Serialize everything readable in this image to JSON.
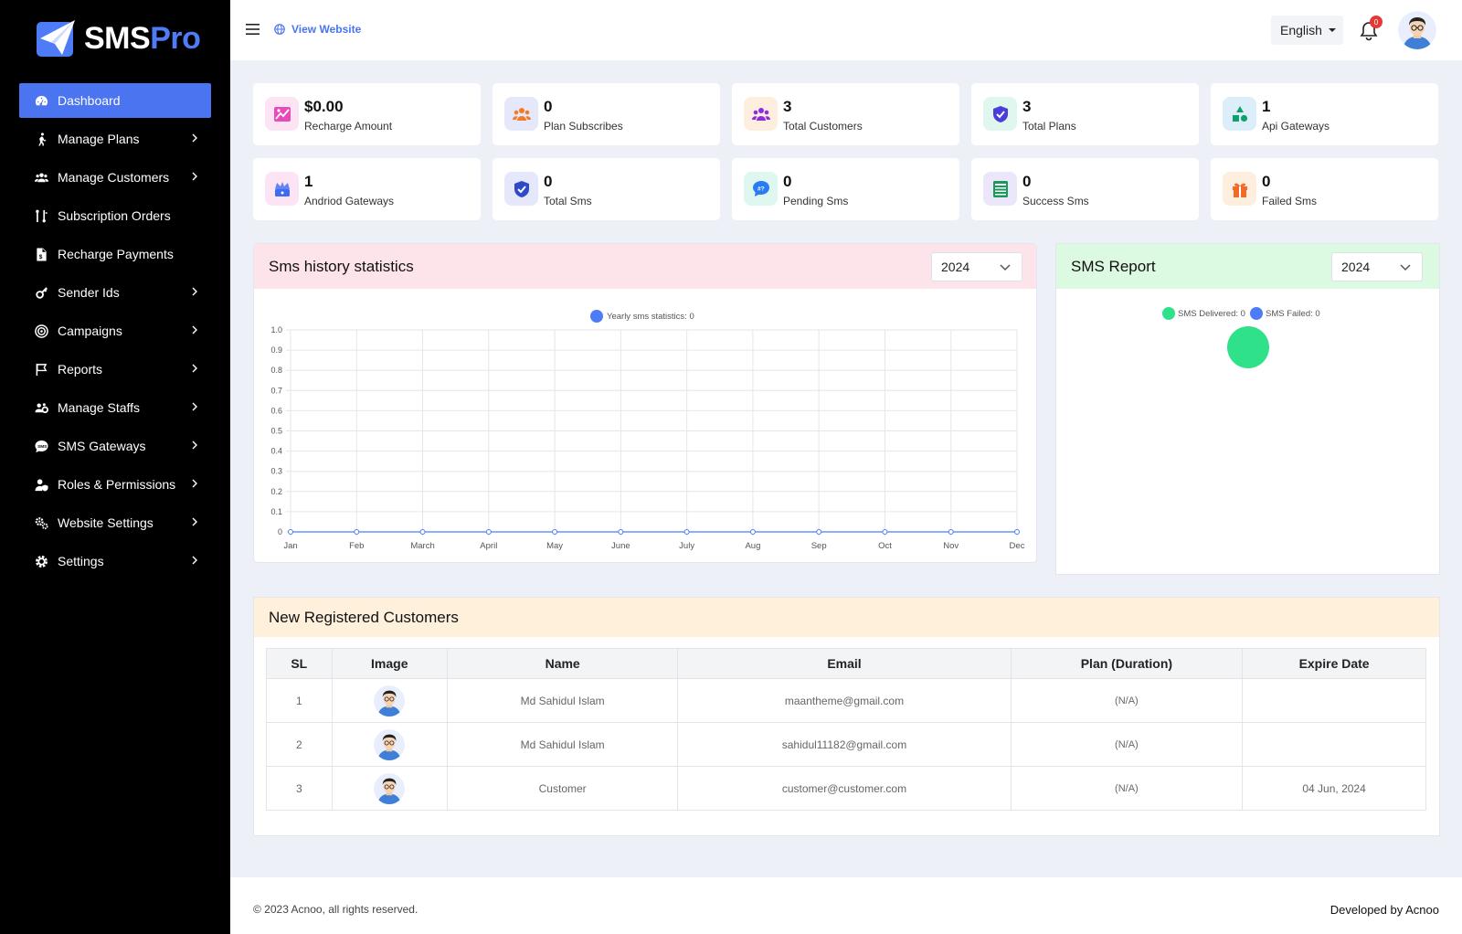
{
  "brand": {
    "name_main": "SMS",
    "name_accent": "Pro",
    "accent_color": "#4e7cf7"
  },
  "sidebar": {
    "items": [
      {
        "label": "Dashboard",
        "icon": "speedometer-icon",
        "active": true,
        "chevron": false
      },
      {
        "label": "Manage Plans",
        "icon": "walking-person-icon",
        "chevron": true
      },
      {
        "label": "Manage Customers",
        "icon": "users-icon",
        "chevron": true
      },
      {
        "label": "Subscription Orders",
        "icon": "sort-icon",
        "chevron": false
      },
      {
        "label": "Recharge Payments",
        "icon": "invoice-dollar-icon",
        "chevron": false
      },
      {
        "label": "Sender Ids",
        "icon": "key-icon",
        "chevron": true
      },
      {
        "label": "Campaigns",
        "icon": "target-icon",
        "chevron": true
      },
      {
        "label": "Reports",
        "icon": "flag-icon",
        "chevron": true
      },
      {
        "label": "Manage Staffs",
        "icon": "users-cog-icon",
        "chevron": true
      },
      {
        "label": "SMS Gateways",
        "icon": "sms-bubble-icon",
        "chevron": true
      },
      {
        "label": "Roles & Permissions",
        "icon": "user-shield-icon",
        "chevron": true
      },
      {
        "label": "Website Settings",
        "icon": "gears-icon",
        "chevron": true
      },
      {
        "label": "Settings",
        "icon": "gear-icon",
        "chevron": true
      }
    ]
  },
  "topbar": {
    "view_website": "View Website",
    "language": "English",
    "notification_count": "0"
  },
  "stats": [
    {
      "value": "$0.00",
      "label": "Recharge Amount",
      "icon": "image-chart-icon",
      "bg": "#fce4f4",
      "fg": "#e23bb4"
    },
    {
      "value": "0",
      "label": "Plan Subscribes",
      "icon": "people-group-icon",
      "bg": "#e5e7fb",
      "fg": "#f47b20"
    },
    {
      "value": "3",
      "label": "Total Customers",
      "icon": "people-group-icon",
      "bg": "#fdeede",
      "fg": "#8e2be2"
    },
    {
      "value": "3",
      "label": "Total Plans",
      "icon": "shield-check-icon",
      "bg": "#dff7ef",
      "fg": "#4b3cdc"
    },
    {
      "value": "1",
      "label": "Api Gateways",
      "icon": "shapes-icon",
      "bg": "#dceefa",
      "fg": "#13a06b"
    },
    {
      "value": "1",
      "label": "Andriod Gateways",
      "icon": "crown-box-icon",
      "bg": "#fce4f4",
      "fg": "#3d6cf0"
    },
    {
      "value": "0",
      "label": "Total Sms",
      "icon": "shield-check-icon",
      "bg": "#e5e7fb",
      "fg": "#2f49c8"
    },
    {
      "value": "0",
      "label": "Pending Sms",
      "icon": "chat-question-icon",
      "bg": "#dff7f1",
      "fg": "#2a7cf0"
    },
    {
      "value": "0",
      "label": "Success Sms",
      "icon": "list-sheet-icon",
      "bg": "#ece6fb",
      "fg": "#1a9a5a"
    },
    {
      "value": "0",
      "label": "Failed Sms",
      "icon": "gift-icon",
      "bg": "#fdeede",
      "fg": "#f06a2a"
    }
  ],
  "sms_history": {
    "title": "Sms history statistics",
    "year": "2024",
    "header_bg": "#fde4ea"
  },
  "sms_report": {
    "title": "SMS Report",
    "year": "2024",
    "header_bg": "#dcfae2"
  },
  "chart_data": [
    {
      "type": "line",
      "title": "",
      "xlabel": "",
      "ylabel": "",
      "categories": [
        "Jan",
        "Feb",
        "March",
        "April",
        "May",
        "June",
        "July",
        "Aug",
        "Sep",
        "Oct",
        "Nov",
        "Dec"
      ],
      "series": [
        {
          "name": "Yearly sms statistics: 0",
          "values": [
            0,
            0,
            0,
            0,
            0,
            0,
            0,
            0,
            0,
            0,
            0,
            0
          ],
          "color": "#4e7cf7"
        }
      ],
      "ylim": [
        0,
        1.0
      ],
      "yticks": [
        "0",
        "0.1",
        "0.2",
        "0.3",
        "0.4",
        "0.5",
        "0.6",
        "0.7",
        "0.8",
        "0.9",
        "1.0"
      ],
      "grid": true,
      "legend": "top-center"
    },
    {
      "type": "pie",
      "title": "",
      "labels": [
        "SMS Delivered: 0",
        "SMS Failed: 0"
      ],
      "values": [
        0,
        0
      ],
      "colors": [
        "#2fe28a",
        "#4e7cf7"
      ],
      "legend": "top-center"
    }
  ],
  "customers": {
    "title": "New Registered Customers",
    "header_bg": "#fff0dc",
    "columns": [
      "SL",
      "Image",
      "Name",
      "Email",
      "Plan (Duration)",
      "Expire Date"
    ],
    "rows": [
      {
        "sl": "1",
        "name": "Md Sahidul Islam",
        "email": "maantheme@gmail.com",
        "plan": "(N/A)",
        "expire": ""
      },
      {
        "sl": "2",
        "name": "Md Sahidul Islam",
        "email": "sahidul11182@gmail.com",
        "plan": "(N/A)",
        "expire": ""
      },
      {
        "sl": "3",
        "name": "Customer",
        "email": "customer@customer.com",
        "plan": "(N/A)",
        "expire": "04 Jun, 2024"
      }
    ]
  },
  "footer": {
    "copyright": "© 2023 Acnoo, all rights reserved.",
    "developer": "Developed by Acnoo"
  }
}
